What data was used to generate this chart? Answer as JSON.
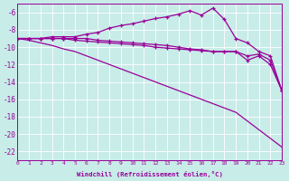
{
  "x": [
    0,
    1,
    2,
    3,
    4,
    5,
    6,
    7,
    8,
    9,
    10,
    11,
    12,
    13,
    14,
    15,
    16,
    17,
    18,
    19,
    20,
    21,
    22,
    23
  ],
  "line_top": [
    -9.0,
    -9.0,
    -9.0,
    -8.8,
    -8.8,
    -8.8,
    -8.5,
    -8.3,
    -7.8,
    -7.5,
    -7.3,
    -7.0,
    -6.7,
    -6.5,
    -6.2,
    -5.8,
    -6.3,
    -5.5,
    -6.8,
    -9.0,
    -9.5,
    -10.5,
    -11.0,
    -15.0
  ],
  "line_mid1": [
    -9.0,
    -9.0,
    -9.0,
    -9.0,
    -9.0,
    -9.0,
    -9.0,
    -9.2,
    -9.3,
    -9.4,
    -9.5,
    -9.6,
    -9.7,
    -9.8,
    -10.0,
    -10.2,
    -10.3,
    -10.5,
    -10.5,
    -10.5,
    -11.0,
    -10.8,
    -11.5,
    -15.0
  ],
  "line_mid2": [
    -9.0,
    -9.0,
    -9.0,
    -9.0,
    -9.0,
    -9.2,
    -9.3,
    -9.4,
    -9.5,
    -9.6,
    -9.7,
    -9.8,
    -10.0,
    -10.1,
    -10.2,
    -10.3,
    -10.4,
    -10.5,
    -10.5,
    -10.5,
    -11.5,
    -11.0,
    -12.0,
    -15.0
  ],
  "line_diag": [
    -9.0,
    -9.2,
    -9.5,
    -9.8,
    -10.2,
    -10.5,
    -11.0,
    -11.5,
    -12.0,
    -12.5,
    -13.0,
    -13.5,
    -14.0,
    -14.5,
    -15.0,
    -15.5,
    -16.0,
    -16.5,
    -17.0,
    -17.5,
    -18.5,
    -19.5,
    -20.5,
    -21.5
  ],
  "bg_color": "#c8ece8",
  "line_color": "#990099",
  "grid_color": "#aad8d0",
  "xlabel": "Windchill (Refroidissement éolien,°C)",
  "ylim": [
    -23,
    -5
  ],
  "xlim": [
    0,
    23
  ],
  "yticks": [
    -6,
    -8,
    -10,
    -12,
    -14,
    -16,
    -18,
    -20,
    -22
  ],
  "xticks": [
    0,
    1,
    2,
    3,
    4,
    5,
    6,
    7,
    8,
    9,
    10,
    11,
    12,
    13,
    14,
    15,
    16,
    17,
    18,
    19,
    20,
    21,
    22,
    23
  ]
}
